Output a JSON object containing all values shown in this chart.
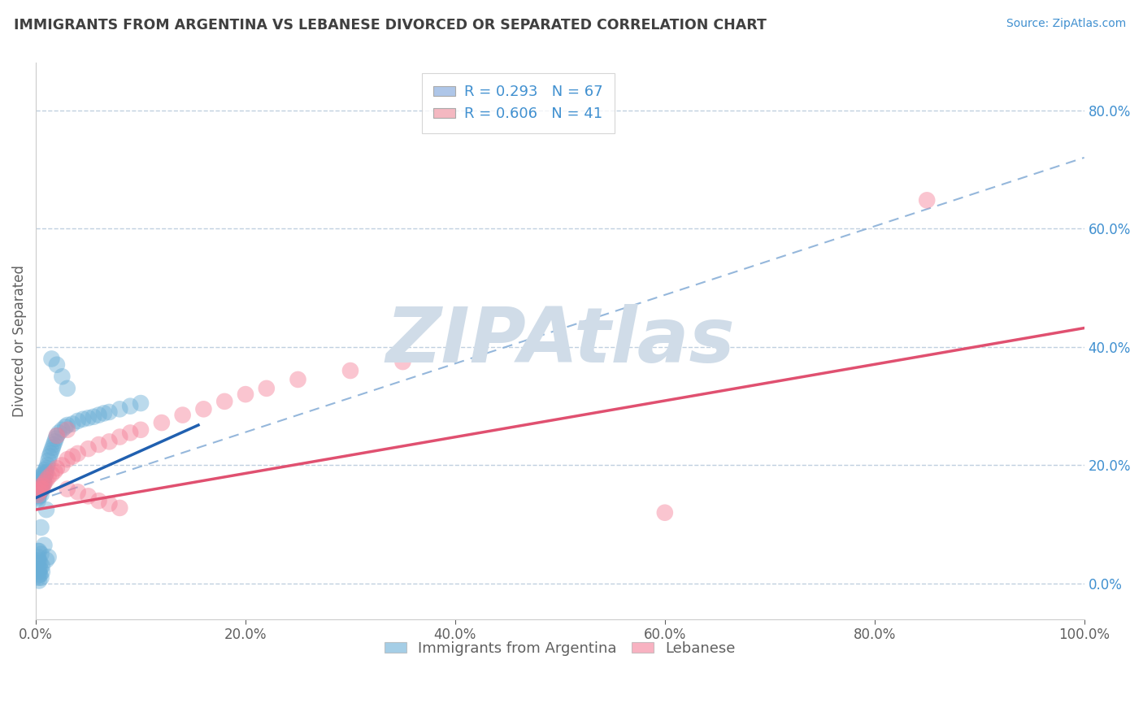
{
  "title": "IMMIGRANTS FROM ARGENTINA VS LEBANESE DIVORCED OR SEPARATED CORRELATION CHART",
  "source_text": "Source: ZipAtlas.com",
  "ylabel": "Divorced or Separated",
  "xlim": [
    0,
    1.0
  ],
  "ylim": [
    -0.06,
    0.88
  ],
  "xticks": [
    0.0,
    0.2,
    0.4,
    0.6,
    0.8,
    1.0
  ],
  "xticklabels": [
    "0.0%",
    "20.0%",
    "40.0%",
    "60.0%",
    "80.0%",
    "100.0%"
  ],
  "yticks": [
    0.0,
    0.2,
    0.4,
    0.6,
    0.8
  ],
  "yticklabels": [
    "0.0%",
    "20.0%",
    "40.0%",
    "60.0%",
    "80.0%"
  ],
  "legend_entries": [
    {
      "label": "R = 0.293   N = 67",
      "color": "#aec6e8"
    },
    {
      "label": "R = 0.606   N = 41",
      "color": "#f4b8c1"
    }
  ],
  "series1_color": "#6aaed6",
  "series2_color": "#f48098",
  "regression1_color": "#2060b0",
  "regression2_color": "#e05070",
  "regression_dashed_color": "#8ab0d8",
  "watermark": "ZIPAtlas",
  "watermark_color": "#d0dce8",
  "background_color": "#ffffff",
  "grid_color": "#c0d0e0",
  "title_color": "#404040",
  "axis_color": "#606060",
  "tick_color": "#4090d0",
  "blue_line_x": [
    0.0,
    0.155
  ],
  "blue_line_y": [
    0.145,
    0.268
  ],
  "pink_line_x": [
    0.0,
    1.0
  ],
  "pink_line_y": [
    0.125,
    0.432
  ],
  "dashed_line_x": [
    0.0,
    1.0
  ],
  "dashed_line_y": [
    0.14,
    0.72
  ],
  "argentina_x": [
    0.001,
    0.001,
    0.001,
    0.002,
    0.002,
    0.002,
    0.002,
    0.002,
    0.003,
    0.003,
    0.003,
    0.003,
    0.003,
    0.004,
    0.004,
    0.004,
    0.004,
    0.005,
    0.005,
    0.005,
    0.005,
    0.005,
    0.006,
    0.006,
    0.006,
    0.006,
    0.007,
    0.007,
    0.007,
    0.008,
    0.008,
    0.008,
    0.009,
    0.009,
    0.01,
    0.01,
    0.011,
    0.012,
    0.013,
    0.014,
    0.015,
    0.016,
    0.017,
    0.018,
    0.019,
    0.02,
    0.022,
    0.025,
    0.028,
    0.03,
    0.035,
    0.04,
    0.045,
    0.05,
    0.055,
    0.06,
    0.065,
    0.07,
    0.08,
    0.09,
    0.1,
    0.03,
    0.025,
    0.02,
    0.015,
    0.01,
    0.005
  ],
  "argentina_y": [
    0.16,
    0.155,
    0.148,
    0.162,
    0.158,
    0.152,
    0.145,
    0.14,
    0.168,
    0.165,
    0.16,
    0.155,
    0.148,
    0.172,
    0.168,
    0.162,
    0.155,
    0.178,
    0.172,
    0.165,
    0.158,
    0.15,
    0.182,
    0.175,
    0.168,
    0.16,
    0.185,
    0.178,
    0.17,
    0.188,
    0.18,
    0.172,
    0.192,
    0.185,
    0.195,
    0.188,
    0.2,
    0.208,
    0.215,
    0.22,
    0.225,
    0.23,
    0.235,
    0.24,
    0.245,
    0.25,
    0.255,
    0.26,
    0.265,
    0.268,
    0.27,
    0.275,
    0.278,
    0.28,
    0.282,
    0.285,
    0.288,
    0.29,
    0.295,
    0.3,
    0.305,
    0.33,
    0.35,
    0.37,
    0.38,
    0.125,
    0.095
  ],
  "argentina_outliers_x": [
    0.005,
    0.008,
    0.01,
    0.003,
    0.006,
    0.012,
    0.004,
    0.002,
    0.003,
    0.004,
    0.003,
    0.002,
    0.002,
    0.003,
    0.004,
    0.005,
    0.006,
    0.003,
    0.002,
    0.003
  ],
  "argentina_outliers_y": [
    0.05,
    0.065,
    0.04,
    0.055,
    0.03,
    0.045,
    0.025,
    0.055,
    0.04,
    0.035,
    0.025,
    0.045,
    0.038,
    0.02,
    0.015,
    0.01,
    0.02,
    0.015,
    0.01,
    0.005
  ],
  "lebanese_x": [
    0.002,
    0.003,
    0.004,
    0.005,
    0.006,
    0.007,
    0.008,
    0.01,
    0.012,
    0.015,
    0.018,
    0.02,
    0.025,
    0.03,
    0.035,
    0.04,
    0.05,
    0.06,
    0.07,
    0.08,
    0.09,
    0.1,
    0.12,
    0.14,
    0.16,
    0.18,
    0.2,
    0.22,
    0.25,
    0.3,
    0.35,
    0.03,
    0.04,
    0.05,
    0.06,
    0.07,
    0.08,
    0.6,
    0.02,
    0.03,
    0.85
  ],
  "lebanese_y": [
    0.15,
    0.155,
    0.16,
    0.165,
    0.16,
    0.165,
    0.17,
    0.175,
    0.18,
    0.185,
    0.19,
    0.195,
    0.2,
    0.21,
    0.215,
    0.22,
    0.228,
    0.235,
    0.24,
    0.248,
    0.255,
    0.26,
    0.272,
    0.285,
    0.295,
    0.308,
    0.32,
    0.33,
    0.345,
    0.36,
    0.375,
    0.16,
    0.155,
    0.148,
    0.14,
    0.135,
    0.128,
    0.12,
    0.25,
    0.26,
    0.648
  ]
}
